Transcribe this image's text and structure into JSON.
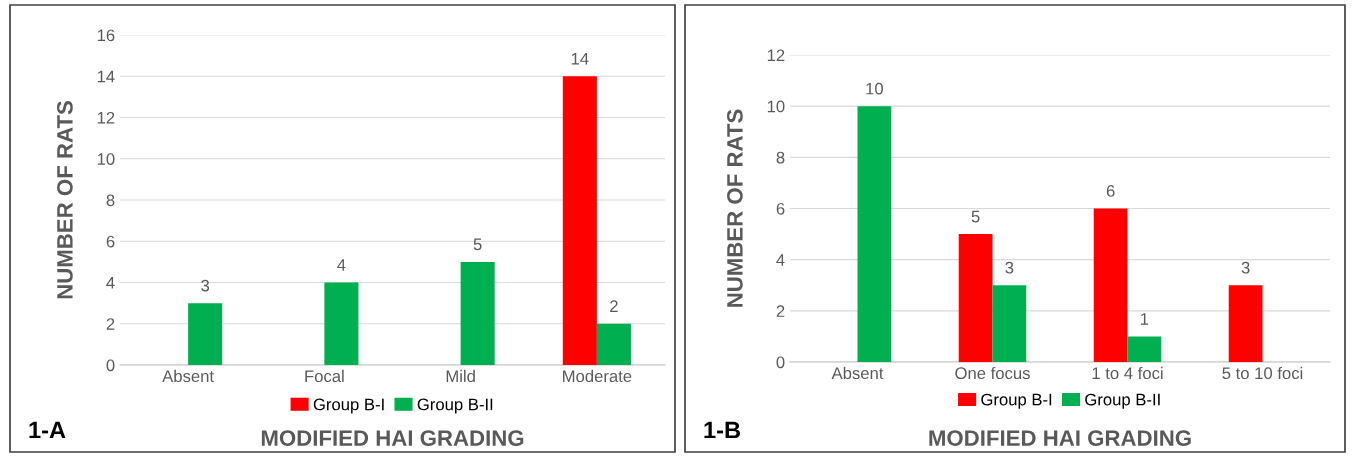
{
  "chart_data": [
    {
      "type": "bar",
      "xlabel": "MODIFIED HAI GRADING",
      "ylabel": "NUMBER OF RATS",
      "categories": [
        "Absent",
        "Focal",
        "Mild",
        "Moderate"
      ],
      "series": [
        {
          "name": "Group B-I",
          "color": "#ff0000",
          "values": [
            null,
            null,
            null,
            14
          ]
        },
        {
          "name": "Group B-II",
          "color": "#00b050",
          "values": [
            3,
            4,
            5,
            2
          ]
        }
      ],
      "ylim": [
        0,
        16
      ],
      "yticks": [
        0,
        2,
        4,
        6,
        8,
        10,
        12,
        14,
        16
      ],
      "grid": "y",
      "legend": "bottom",
      "data_labels": true,
      "annotations": [
        "1-A"
      ]
    },
    {
      "type": "bar",
      "xlabel": "MODIFIED HAI GRADING",
      "ylabel": "NUMBER OF RATS",
      "categories": [
        "Absent",
        "One focus",
        "1 to 4 foci",
        "5 to 10 foci"
      ],
      "series": [
        {
          "name": "Group B-I",
          "color": "#ff0000",
          "values": [
            null,
            5,
            6,
            3
          ]
        },
        {
          "name": "Group B-II",
          "color": "#00b050",
          "values": [
            10,
            3,
            1,
            null
          ]
        }
      ],
      "ylim": [
        0,
        12
      ],
      "yticks": [
        0,
        2,
        4,
        6,
        8,
        10,
        12
      ],
      "grid": "y",
      "legend": "bottom",
      "data_labels": true,
      "annotations": [
        "1-B"
      ]
    }
  ]
}
